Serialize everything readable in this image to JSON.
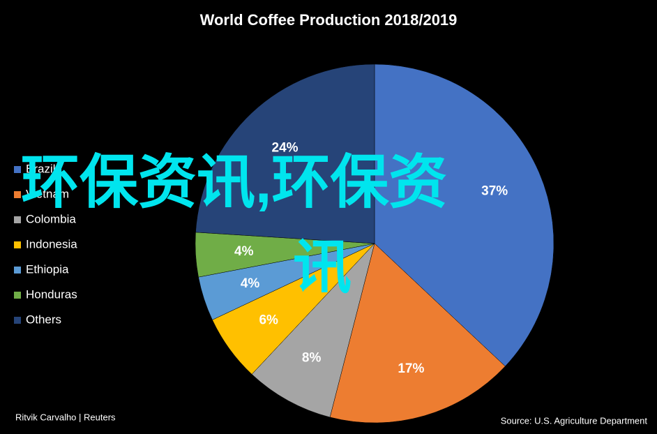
{
  "chart_data": {
    "type": "pie",
    "title": "World Coffee Production 2018/2019",
    "categories": [
      "Brazil",
      "Vietnam",
      "Colombia",
      "Indonesia",
      "Ethiopia",
      "Honduras",
      "Others"
    ],
    "values": [
      37,
      17,
      8,
      6,
      4,
      4,
      24
    ],
    "value_labels": [
      "37%",
      "17%",
      "8%",
      "6%",
      "4%",
      "4%",
      "24%"
    ],
    "colors": [
      "#4472c4",
      "#ed7d31",
      "#a5a5a5",
      "#ffc000",
      "#5b9bd5",
      "#70ad47",
      "#264478"
    ],
    "credit": "Ritvik Carvalho | Reuters",
    "source": "Source: U.S. Agriculture Department",
    "watermark": [
      "环保资讯,环保资",
      "讯"
    ]
  }
}
